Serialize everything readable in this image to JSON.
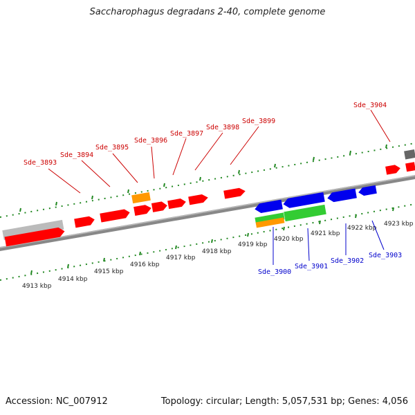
{
  "title": "Saccharophagus degradans 2-40, complete genome",
  "footer": {
    "accession": "Accession: NC_007912",
    "topology": "Topology: circular; Length: 5,057,531 bp; Genes: 4,056"
  },
  "colors": {
    "forward_gene": "#ff0000",
    "reverse_gene": "#0000ee",
    "green_gene": "#33cc33",
    "orange_gene": "#ff9900",
    "gray_gene": "#bbbbbb",
    "dark_gray_gene": "#666666",
    "ticks": "#228822",
    "backbone": "#888888",
    "forward_label": "#cc0000",
    "reverse_label": "#0000cc"
  },
  "kbp_ticks": [
    "4913 kbp",
    "4914 kbp",
    "4915 kbp",
    "4916 kbp",
    "4917 kbp",
    "4918 kbp",
    "4919 kbp",
    "4920 kbp",
    "4921 kbp",
    "4922 kbp",
    "4923 kbp"
  ],
  "forward_labels": [
    "Sde_3893",
    "Sde_3894",
    "Sde_3895",
    "Sde_3896",
    "Sde_3897",
    "Sde_3898",
    "Sde_3899",
    "Sde_3904"
  ],
  "reverse_labels": [
    "Sde_3900",
    "Sde_3901",
    "Sde_3902",
    "Sde_3903"
  ]
}
